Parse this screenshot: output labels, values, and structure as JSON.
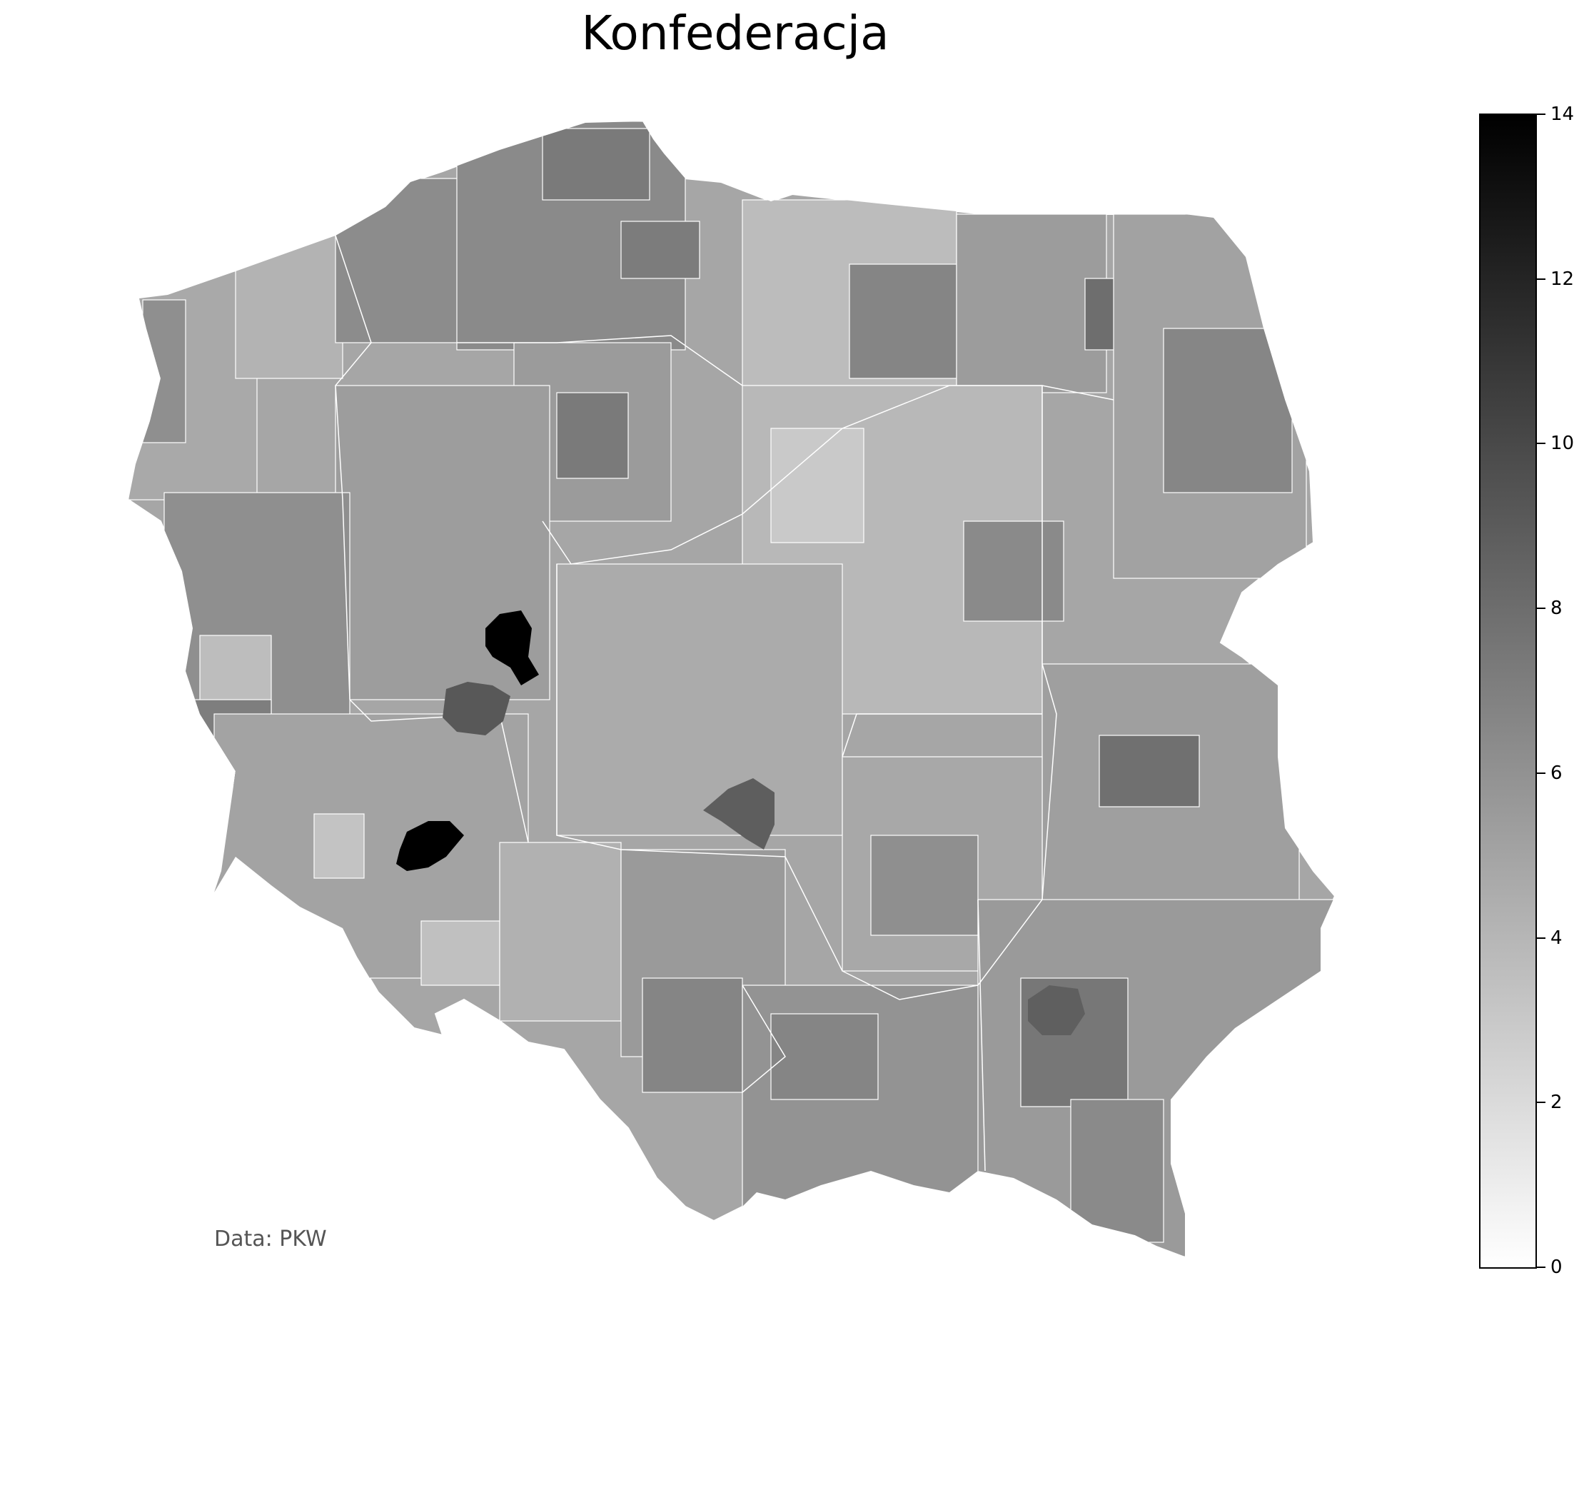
{
  "title": "Konfederacja",
  "source": "Data: PKW",
  "colorbar": {
    "min": 0,
    "max": 14,
    "ticks": [
      "0",
      "2",
      "4",
      "6",
      "8",
      "10",
      "12",
      "14"
    ],
    "colors": {
      "low": "#ffffff",
      "high": "#000000"
    }
  },
  "map": {
    "country": "Poland",
    "base_level": 6.2,
    "darkest_districts_level": 14,
    "border_color": "#ffffff"
  }
}
